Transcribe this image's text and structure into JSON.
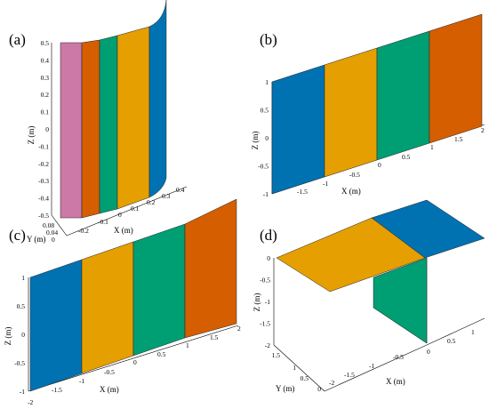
{
  "panels": [
    {
      "id": "a",
      "label": "(a)",
      "x_label": "X (m)",
      "y_label": "Y (m)",
      "z_label": "Z (m)",
      "x_ticks": [
        "-0.2",
        "-0.1",
        "0",
        "0.1",
        "0.2",
        "0.3",
        "0.4"
      ],
      "y_ticks": [
        "0.08",
        "0.04",
        "0"
      ],
      "z_ticks": [
        "0.5",
        "0.4",
        "0.3",
        "0.2",
        "0.1",
        "0",
        "-0.1",
        "-0.2",
        "-0.3",
        "-0.4",
        "-0.5"
      ],
      "colors": [
        "#CC79A7",
        "#D55E00",
        "#009E73",
        "#E69F00",
        "#0072B2"
      ]
    },
    {
      "id": "b",
      "label": "(b)",
      "x_label": "X (m)",
      "z_label": "Z (m)",
      "x_ticks": [
        "-1.5",
        "-1",
        "-0.5",
        "0",
        "0.5",
        "1",
        "1.5",
        "2"
      ],
      "z_ticks": [
        "1",
        "0.5",
        "0",
        "-0.5",
        "-1"
      ],
      "colors": [
        "#0072B2",
        "#E69F00",
        "#009E73",
        "#D55E00"
      ]
    },
    {
      "id": "c",
      "label": "(c)",
      "x_label": "X (m)",
      "z_label": "Z (m)",
      "x_ticks": [
        "-2",
        "-1.5",
        "-1",
        "-0.5",
        "0",
        "0.5",
        "1",
        "1.5",
        "2"
      ],
      "z_ticks": [
        "1",
        "0.5",
        "0",
        "-0.5",
        "-1"
      ],
      "colors": [
        "#0072B2",
        "#E69F00",
        "#009E73",
        "#D55E00"
      ]
    },
    {
      "id": "d",
      "label": "(d)",
      "x_label": "X (m)",
      "y_label": "Y (m)",
      "z_label": "Z (m)",
      "x_ticks": [
        "-2",
        "-1.5",
        "-1",
        "-0.5",
        "0",
        "0.5",
        "1"
      ],
      "y_ticks": [
        "1.5",
        "1",
        "0.5",
        "0"
      ],
      "z_ticks": [
        "0",
        "-0.5",
        "-1",
        "-1.5",
        "-2"
      ],
      "colors": [
        "#E69F00",
        "#0072B2",
        "#009E73"
      ]
    }
  ]
}
